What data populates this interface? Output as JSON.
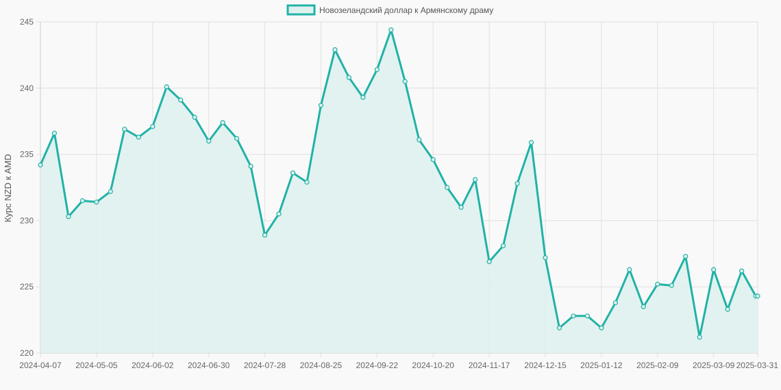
{
  "chart_data": {
    "type": "line",
    "title": "",
    "xlabel": "",
    "ylabel": "Курс NZD к AMD",
    "ylim": [
      220,
      245
    ],
    "yticks": [
      220,
      225,
      230,
      235,
      240,
      245
    ],
    "x_tick_labels": [
      "2024-04-07",
      "2024-05-05",
      "2024-06-02",
      "2024-06-30",
      "2024-07-28",
      "2024-08-25",
      "2024-09-22",
      "2024-10-20",
      "2024-11-17",
      "2024-12-15",
      "2025-01-12",
      "2025-02-09",
      "2025-03-09",
      "2025-03-31"
    ],
    "legend": {
      "position": "top-center"
    },
    "grid": true,
    "colors": {
      "line": "#20b2a6",
      "fill": "#dff1ee",
      "grid": "#e0e0e0"
    },
    "x": [
      "2024-04-07",
      "2024-04-14",
      "2024-04-21",
      "2024-04-28",
      "2024-05-05",
      "2024-05-12",
      "2024-05-19",
      "2024-05-26",
      "2024-06-02",
      "2024-06-09",
      "2024-06-16",
      "2024-06-23",
      "2024-06-30",
      "2024-07-07",
      "2024-07-14",
      "2024-07-21",
      "2024-07-28",
      "2024-08-04",
      "2024-08-11",
      "2024-08-18",
      "2024-08-25",
      "2024-09-01",
      "2024-09-08",
      "2024-09-15",
      "2024-09-22",
      "2024-09-29",
      "2024-10-06",
      "2024-10-13",
      "2024-10-20",
      "2024-10-27",
      "2024-11-03",
      "2024-11-10",
      "2024-11-17",
      "2024-11-24",
      "2024-12-01",
      "2024-12-08",
      "2024-12-15",
      "2024-12-22",
      "2024-12-29",
      "2025-01-05",
      "2025-01-12",
      "2025-01-19",
      "2025-01-26",
      "2025-02-02",
      "2025-02-09",
      "2025-02-16",
      "2025-02-23",
      "2025-03-02",
      "2025-03-09",
      "2025-03-16",
      "2025-03-23",
      "2025-03-30",
      "2025-03-31"
    ],
    "series": [
      {
        "name": "Новозеландский доллар к Армянскому драму",
        "values": [
          234.2,
          236.6,
          230.3,
          231.5,
          231.4,
          232.2,
          236.9,
          236.3,
          237.1,
          240.1,
          239.1,
          237.8,
          236.0,
          237.4,
          236.2,
          234.1,
          228.9,
          230.5,
          233.6,
          232.9,
          238.7,
          242.9,
          240.8,
          239.3,
          241.4,
          244.4,
          240.5,
          236.1,
          234.6,
          232.5,
          231.0,
          233.1,
          226.9,
          228.1,
          232.8,
          235.9,
          227.2,
          221.9,
          222.8,
          222.8,
          221.9,
          223.8,
          226.3,
          223.5,
          225.2,
          225.1,
          227.3,
          221.2,
          226.3,
          223.3,
          226.2,
          224.3,
          224.3
        ]
      }
    ]
  }
}
